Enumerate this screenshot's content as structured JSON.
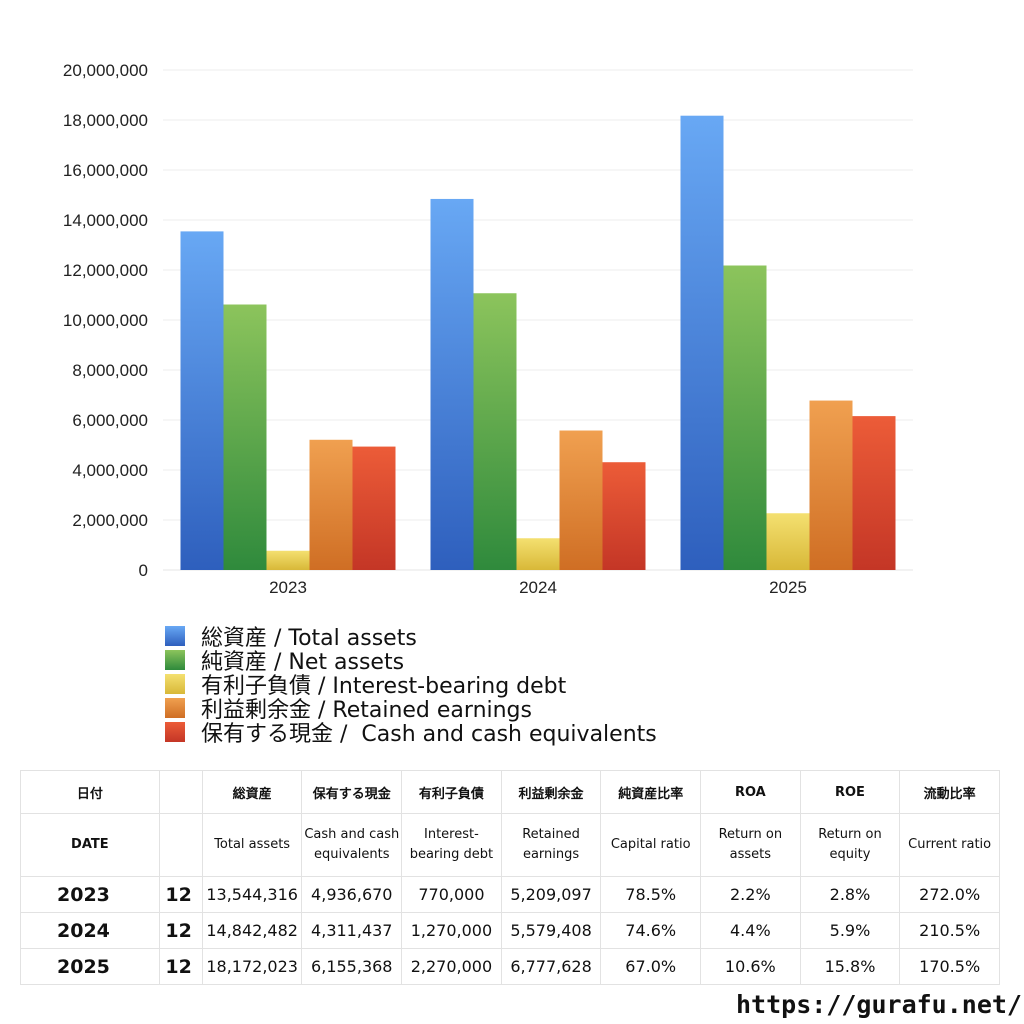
{
  "chart_data": {
    "type": "bar",
    "categories": [
      "2023",
      "2024",
      "2025"
    ],
    "series": [
      {
        "name": "総資産 / Total assets",
        "values": [
          13544316,
          14842482,
          18172023
        ],
        "color_top": "#68a8f4",
        "color_bottom": "#2e5fbd"
      },
      {
        "name": "純資産 / Net assets",
        "values": [
          10620000,
          11070000,
          12180000
        ],
        "color_top": "#8cc45c",
        "color_bottom": "#2f8a3c"
      },
      {
        "name": "有利子負債 / Interest-bearing debt",
        "values": [
          770000,
          1270000,
          2270000
        ],
        "color_top": "#f4e070",
        "color_bottom": "#d8b838"
      },
      {
        "name": "利益剰余金 / Retained earnings",
        "values": [
          5209097,
          5579408,
          6777628
        ],
        "color_top": "#f0a050",
        "color_bottom": "#cf6e24"
      },
      {
        "name": "保有する現金 /  Cash and cash equivalents",
        "values": [
          4936670,
          4311437,
          6155368
        ],
        "color_top": "#ec5c38",
        "color_bottom": "#c43626"
      }
    ],
    "ylim": [
      0,
      20000000
    ],
    "yticks": [
      "0",
      "2,000,000",
      "4,000,000",
      "6,000,000",
      "8,000,000",
      "10,000,000",
      "12,000,000",
      "14,000,000",
      "16,000,000",
      "18,000,000",
      "20,000,000"
    ],
    "grid": true,
    "legend": "bottom-left"
  },
  "table": {
    "headers_jp": [
      "日付",
      "",
      "総資産",
      "保有する現金",
      "有利子負債",
      "利益剰余金",
      "純資産比率",
      "ROA",
      "ROE",
      "流動比率"
    ],
    "headers_en": [
      "DATE",
      "",
      "Total assets",
      "Cash and cash equivalents",
      "Interest-bearing debt",
      "Retained earnings",
      "Capital ratio",
      "Return on assets",
      "Return on equity",
      "Current ratio"
    ],
    "rows": [
      [
        "2023",
        "12",
        "13,544,316",
        "4,936,670",
        "770,000",
        "5,209,097",
        "78.5%",
        "2.2%",
        "2.8%",
        "272.0%"
      ],
      [
        "2024",
        "12",
        "14,842,482",
        "4,311,437",
        "1,270,000",
        "5,579,408",
        "74.6%",
        "4.4%",
        "5.9%",
        "210.5%"
      ],
      [
        "2025",
        "12",
        "18,172,023",
        "6,155,368",
        "2,270,000",
        "6,777,628",
        "67.0%",
        "10.6%",
        "15.8%",
        "170.5%"
      ]
    ]
  },
  "footer": {
    "url": "https://gurafu.net/"
  }
}
